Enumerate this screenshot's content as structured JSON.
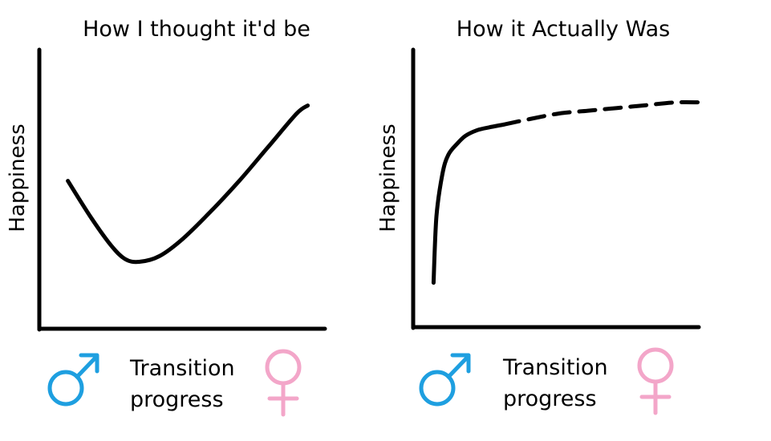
{
  "chart_data": [
    {
      "type": "line",
      "title": "How I thought it'd be",
      "ylabel": "Happiness",
      "xlabel": [
        "Transition",
        "progress"
      ],
      "x_start_symbol": "male-symbol-icon",
      "x_end_symbol": "female-symbol-icon",
      "xlim": [
        0,
        1
      ],
      "ylim": [
        0,
        1
      ],
      "grid": false,
      "legend": "none",
      "series": [
        {
          "style": "solid",
          "x": [
            0.1,
            0.18,
            0.25,
            0.3,
            0.35,
            0.42,
            0.5,
            0.6,
            0.7,
            0.8,
            0.9,
            0.94
          ],
          "y": [
            0.53,
            0.4,
            0.3,
            0.25,
            0.24,
            0.26,
            0.32,
            0.42,
            0.53,
            0.65,
            0.77,
            0.8
          ]
        }
      ]
    },
    {
      "type": "line",
      "title": "How it Actually Was",
      "ylabel": "Happiness",
      "xlabel": [
        "Transition",
        "progress"
      ],
      "x_start_symbol": "male-symbol-icon",
      "x_end_symbol": "female-symbol-icon",
      "xlim": [
        0,
        1
      ],
      "ylim": [
        0,
        1
      ],
      "grid": false,
      "legend": "none",
      "series": [
        {
          "style": "solid",
          "x": [
            0.07,
            0.08,
            0.1,
            0.12,
            0.15,
            0.18,
            0.22,
            0.26,
            0.31
          ],
          "y": [
            0.16,
            0.4,
            0.55,
            0.62,
            0.66,
            0.69,
            0.71,
            0.72,
            0.73
          ]
        },
        {
          "style": "dashed",
          "x": [
            0.31,
            0.4,
            0.5,
            0.6,
            0.7,
            0.8,
            0.9,
            1.0
          ],
          "y": [
            0.73,
            0.75,
            0.77,
            0.78,
            0.79,
            0.8,
            0.81,
            0.81
          ]
        }
      ]
    }
  ],
  "colors": {
    "line": "#000000",
    "male_symbol": "#1e9fe0",
    "female_symbol": "#f3a6c9"
  }
}
